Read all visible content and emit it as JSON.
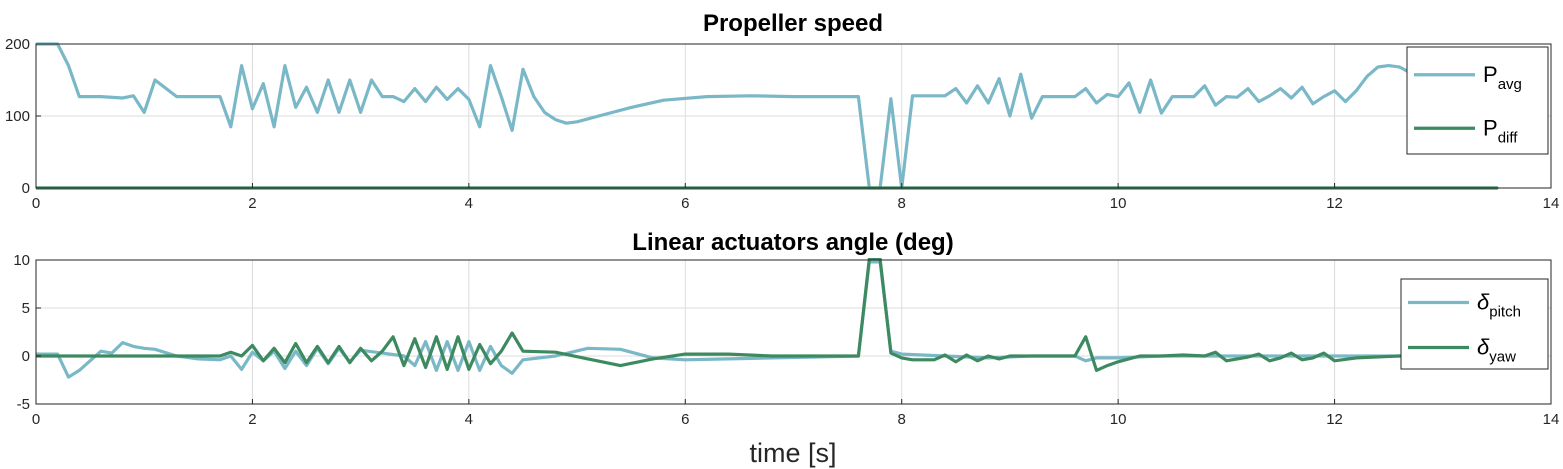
{
  "chart_data": [
    {
      "type": "line",
      "title": "Propeller speed",
      "xlabel": "",
      "ylabel": "",
      "xlim": [
        0,
        14
      ],
      "ylim": [
        0,
        200
      ],
      "xticks": [
        0,
        2,
        4,
        6,
        8,
        10,
        12,
        14
      ],
      "yticks": [
        0,
        100,
        200
      ],
      "grid": true,
      "legend": "right",
      "series": [
        {
          "name": "P",
          "subscript": "avg",
          "color": "#7ab8c8",
          "x": [
            0,
            0.2,
            0.3,
            0.4,
            0.6,
            0.8,
            0.9,
            1.0,
            1.1,
            1.3,
            1.5,
            1.6,
            1.7,
            1.8,
            1.9,
            2.0,
            2.1,
            2.2,
            2.3,
            2.4,
            2.5,
            2.6,
            2.7,
            2.8,
            2.9,
            3.0,
            3.1,
            3.2,
            3.3,
            3.4,
            3.5,
            3.6,
            3.7,
            3.8,
            3.9,
            4.0,
            4.1,
            4.2,
            4.3,
            4.4,
            4.5,
            4.6,
            4.7,
            4.8,
            4.9,
            5.0,
            5.2,
            5.5,
            5.8,
            6.2,
            6.6,
            7.0,
            7.3,
            7.6,
            7.7,
            7.8,
            7.9,
            8.0,
            8.1,
            8.2,
            8.3,
            8.4,
            8.5,
            8.6,
            8.7,
            8.8,
            8.9,
            9.0,
            9.1,
            9.2,
            9.3,
            9.4,
            9.5,
            9.6,
            9.7,
            9.8,
            9.9,
            10.0,
            10.1,
            10.2,
            10.3,
            10.4,
            10.5,
            10.6,
            10.7,
            10.8,
            10.9,
            11.0,
            11.1,
            11.2,
            11.3,
            11.4,
            11.5,
            11.6,
            11.7,
            11.8,
            11.9,
            12.0,
            12.1,
            12.2,
            12.3,
            12.4,
            12.5,
            12.6,
            12.7,
            12.8,
            13.0,
            13.2,
            13.5
          ],
          "values": [
            200,
            200,
            170,
            127,
            127,
            125,
            128,
            105,
            150,
            127,
            127,
            127,
            127,
            85,
            170,
            110,
            145,
            85,
            170,
            112,
            140,
            105,
            150,
            105,
            150,
            105,
            150,
            127,
            127,
            120,
            138,
            120,
            140,
            123,
            138,
            123,
            85,
            170,
            127,
            80,
            165,
            127,
            105,
            95,
            90,
            92,
            100,
            112,
            122,
            127,
            128,
            127,
            127,
            127,
            0,
            0,
            124,
            0,
            128,
            128,
            128,
            128,
            138,
            118,
            142,
            118,
            152,
            100,
            158,
            97,
            127,
            127,
            127,
            127,
            138,
            118,
            130,
            127,
            146,
            105,
            150,
            104,
            127,
            127,
            127,
            142,
            115,
            127,
            126,
            138,
            120,
            128,
            138,
            125,
            140,
            117,
            127,
            135,
            120,
            135,
            155,
            168,
            170,
            168,
            160,
            150,
            140,
            130,
            130
          ]
        },
        {
          "name": "P",
          "subscript": "diff",
          "color": "#3d8a60",
          "x": [
            0,
            13.5
          ],
          "values": [
            0,
            0
          ]
        }
      ]
    },
    {
      "type": "line",
      "title": "Linear actuators angle (deg)",
      "xlabel": "time [s]",
      "ylabel": "",
      "xlim": [
        0,
        14
      ],
      "ylim": [
        -5,
        10
      ],
      "xticks": [
        0,
        2,
        4,
        6,
        8,
        10,
        12,
        14
      ],
      "yticks": [
        -5,
        0,
        5,
        10
      ],
      "grid": true,
      "legend": "right",
      "series": [
        {
          "name": "δ",
          "subscript": "pitch",
          "color": "#7ab8c8",
          "x": [
            0,
            0.2,
            0.3,
            0.4,
            0.6,
            0.7,
            0.8,
            0.9,
            1.0,
            1.1,
            1.3,
            1.5,
            1.7,
            1.8,
            1.9,
            2.0,
            2.1,
            2.2,
            2.3,
            2.4,
            2.5,
            2.6,
            2.7,
            2.8,
            2.9,
            3.0,
            3.2,
            3.4,
            3.5,
            3.6,
            3.7,
            3.8,
            3.9,
            4.0,
            4.1,
            4.2,
            4.3,
            4.4,
            4.5,
            4.8,
            5.1,
            5.4,
            5.7,
            6.0,
            6.4,
            6.8,
            7.2,
            7.6,
            7.7,
            7.8,
            7.9,
            8.0,
            8.4,
            8.8,
            9.2,
            9.6,
            9.7,
            9.8,
            10.0,
            10.4,
            10.8,
            11.2,
            11.6,
            12.0,
            12.4,
            12.8
          ],
          "values": [
            0.2,
            0.2,
            -2.2,
            -1.5,
            0.5,
            0.3,
            1.4,
            1.0,
            0.8,
            0.7,
            0,
            -0.3,
            -0.4,
            0,
            -1.4,
            0.4,
            -0.5,
            0.5,
            -1.3,
            0.5,
            -1.0,
            0.8,
            -0.8,
            0.8,
            -0.6,
            0.6,
            0.3,
            0,
            -1.0,
            1.5,
            -1.5,
            1.5,
            -1.5,
            1.5,
            -1.5,
            1.0,
            -1.0,
            -1.8,
            -0.4,
            0,
            0.8,
            0.7,
            -0.2,
            -0.4,
            -0.3,
            -0.2,
            -0.1,
            0,
            9.8,
            9.8,
            0.5,
            0.2,
            0,
            -0.2,
            0,
            0,
            -0.5,
            -0.2,
            -0.2,
            0,
            0,
            0,
            0,
            0,
            0,
            0
          ]
        },
        {
          "name": "δ",
          "subscript": "yaw",
          "color": "#3d8a60",
          "x": [
            0,
            0.5,
            1.0,
            1.5,
            1.7,
            1.8,
            1.9,
            2.0,
            2.1,
            2.2,
            2.3,
            2.4,
            2.5,
            2.6,
            2.7,
            2.8,
            2.9,
            3.0,
            3.1,
            3.2,
            3.3,
            3.4,
            3.5,
            3.6,
            3.7,
            3.8,
            3.9,
            4.0,
            4.1,
            4.2,
            4.3,
            4.4,
            4.5,
            4.8,
            5.1,
            5.4,
            5.7,
            6.0,
            6.4,
            6.8,
            7.2,
            7.6,
            7.7,
            7.8,
            7.9,
            8.0,
            8.1,
            8.2,
            8.3,
            8.4,
            8.5,
            8.6,
            8.7,
            8.8,
            8.9,
            9.0,
            9.2,
            9.4,
            9.6,
            9.7,
            9.8,
            9.9,
            10.0,
            10.2,
            10.4,
            10.6,
            10.8,
            10.9,
            11.0,
            11.1,
            11.2,
            11.3,
            11.4,
            11.5,
            11.6,
            11.7,
            11.8,
            11.9,
            12.0,
            12.2,
            12.6,
            13.0,
            13.5
          ],
          "values": [
            0,
            0,
            0,
            0,
            0,
            0.4,
            0,
            1.1,
            -0.5,
            0.8,
            -0.7,
            1.3,
            -0.7,
            1.0,
            -0.7,
            1.0,
            -0.7,
            0.8,
            -0.5,
            0.5,
            2.0,
            -1.0,
            1.8,
            -1.2,
            2.0,
            -1.4,
            2.0,
            -1.4,
            1.2,
            -0.8,
            0.5,
            2.4,
            0.5,
            0.4,
            -0.3,
            -1.0,
            -0.3,
            0.2,
            0.2,
            0,
            0,
            0,
            10.1,
            10.1,
            0.3,
            -0.2,
            -0.4,
            -0.4,
            -0.4,
            0.1,
            -0.6,
            0.1,
            -0.5,
            0,
            -0.3,
            0,
            0,
            0,
            0,
            2.0,
            -1.5,
            -1.0,
            -0.6,
            0,
            0,
            0.1,
            0,
            0.4,
            -0.5,
            -0.3,
            -0.1,
            0.2,
            -0.5,
            -0.2,
            0.3,
            -0.4,
            -0.2,
            0.3,
            -0.5,
            -0.2,
            0,
            0,
            0
          ]
        }
      ]
    }
  ]
}
